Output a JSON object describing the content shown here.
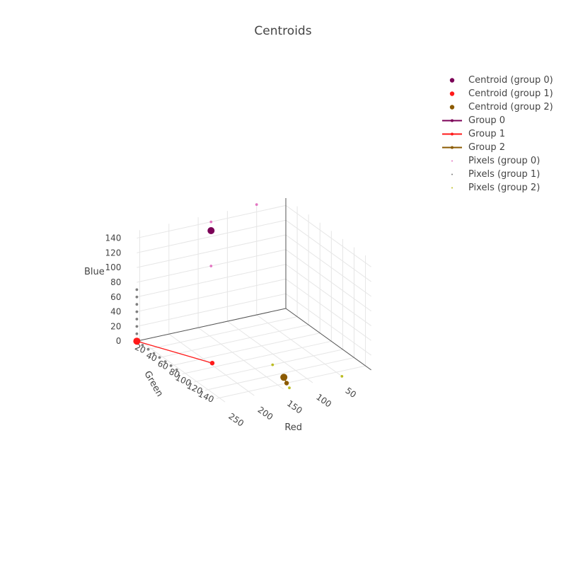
{
  "title": "Centroids",
  "chart_data": {
    "type": "scatter",
    "title": "Centroids",
    "axes": {
      "x": {
        "label": "Red",
        "ticks": [
          50,
          100,
          150,
          200,
          250
        ]
      },
      "y": {
        "label": "Green",
        "ticks": [
          20,
          40,
          60,
          80,
          100,
          120,
          140
        ]
      },
      "z": {
        "label": "Blue",
        "ticks": [
          0,
          20,
          40,
          60,
          80,
          100,
          120,
          140
        ]
      }
    },
    "grid": true,
    "legend_position": "top-right",
    "series": [
      {
        "name": "Centroid (group 0)",
        "mode": "markers",
        "color": "#7b0057",
        "points": [
          [
            128,
            0,
            128
          ]
        ]
      },
      {
        "name": "Centroid (group 1)",
        "mode": "markers",
        "color": "#ff1a1a",
        "points": [
          [
            255,
            0,
            0
          ]
        ]
      },
      {
        "name": "Centroid (group 2)",
        "mode": "markers",
        "color": "#8b5a00",
        "points": [
          [
            128,
            128,
            0
          ]
        ]
      },
      {
        "name": "Group 0",
        "mode": "lines+markers",
        "color": "#7b0057",
        "points": [
          [
            128,
            0,
            128
          ],
          [
            128,
            0,
            128
          ]
        ]
      },
      {
        "name": "Group 1",
        "mode": "lines+markers",
        "color": "#ff1a1a",
        "points": [
          [
            255,
            0,
            0
          ],
          [
            196,
            72,
            0
          ]
        ]
      },
      {
        "name": "Group 2",
        "mode": "lines+markers",
        "color": "#8b5a00",
        "points": [
          [
            128,
            128,
            0
          ],
          [
            135,
            140,
            0
          ]
        ]
      },
      {
        "name": "Pixels (group 0)",
        "mode": "markers",
        "color": "#e377c2",
        "points": [
          [
            128,
            0,
            140
          ],
          [
            128,
            0,
            80
          ],
          [
            50,
            0,
            150
          ]
        ]
      },
      {
        "name": "Pixels (group 1)",
        "mode": "markers",
        "color": "#7f7f7f",
        "points": [
          [
            255,
            0,
            70
          ],
          [
            255,
            0,
            60
          ],
          [
            255,
            0,
            50
          ],
          [
            255,
            0,
            40
          ],
          [
            255,
            0,
            30
          ],
          [
            255,
            0,
            20
          ],
          [
            255,
            0,
            10
          ],
          [
            255,
            10,
            0
          ],
          [
            255,
            20,
            0
          ],
          [
            255,
            30,
            0
          ],
          [
            255,
            40,
            0
          ],
          [
            255,
            50,
            0
          ],
          [
            255,
            60,
            0
          ],
          [
            255,
            70,
            0
          ]
        ]
      },
      {
        "name": "Pixels (group 2)",
        "mode": "markers",
        "color": "#bcbd22",
        "points": [
          [
            120,
            100,
            0
          ],
          [
            140,
            150,
            0
          ],
          [
            50,
            150,
            0
          ]
        ]
      }
    ]
  }
}
